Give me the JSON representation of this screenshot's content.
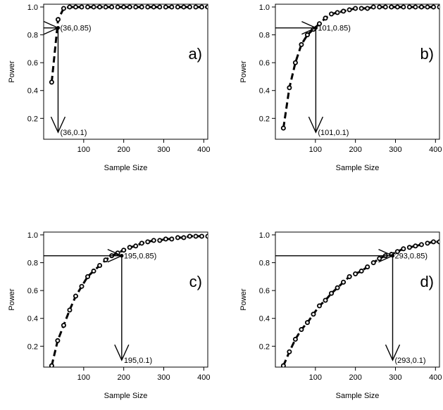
{
  "chart_data": [
    {
      "type": "scatter",
      "panel_label": "a)",
      "xlabel": "Sample Size",
      "ylabel": "Power",
      "xlim": [
        0,
        410
      ],
      "ylim": [
        0.05,
        1.02
      ],
      "xticks": [
        "100",
        "200",
        "300",
        "400"
      ],
      "yticks": [
        "0.2",
        "0.4",
        "0.6",
        "0.8",
        "1.0"
      ],
      "x": [
        20,
        36,
        50,
        65,
        80,
        95,
        110,
        125,
        140,
        155,
        170,
        185,
        200,
        215,
        230,
        245,
        260,
        275,
        290,
        305,
        320,
        335,
        350,
        365,
        380,
        395,
        410
      ],
      "y": [
        0.46,
        0.91,
        0.99,
        1.0,
        1.0,
        1.0,
        1.0,
        1.0,
        1.0,
        1.0,
        1.0,
        1.0,
        1.0,
        1.0,
        1.0,
        1.0,
        1.0,
        1.0,
        1.0,
        1.0,
        1.0,
        1.0,
        1.0,
        1.0,
        1.0,
        1.0,
        1.0
      ],
      "target": {
        "x": 36,
        "y": 0.85,
        "label": "(36,0.85)"
      },
      "drop": {
        "x": 36,
        "y": 0.1,
        "label": "(36,0.1)"
      }
    },
    {
      "type": "scatter",
      "panel_label": "b)",
      "xlabel": "Sample Size",
      "ylabel": "Power",
      "xlim": [
        0,
        410
      ],
      "ylim": [
        0.05,
        1.02
      ],
      "xticks": [
        "100",
        "200",
        "300",
        "400"
      ],
      "yticks": [
        "0.2",
        "0.4",
        "0.6",
        "0.8",
        "1.0"
      ],
      "x": [
        20,
        35,
        50,
        65,
        80,
        95,
        110,
        125,
        140,
        155,
        170,
        185,
        200,
        215,
        230,
        245,
        260,
        275,
        290,
        305,
        320,
        335,
        350,
        365,
        380,
        395,
        410
      ],
      "y": [
        0.13,
        0.42,
        0.6,
        0.73,
        0.8,
        0.84,
        0.88,
        0.92,
        0.95,
        0.96,
        0.97,
        0.98,
        0.99,
        0.99,
        0.99,
        1.0,
        1.0,
        1.0,
        1.0,
        1.0,
        1.0,
        1.0,
        1.0,
        1.0,
        1.0,
        1.0,
        1.0
      ],
      "target": {
        "x": 101,
        "y": 0.85,
        "label": "101,0.85)"
      },
      "drop": {
        "x": 101,
        "y": 0.1,
        "label": "(101,0.1)"
      }
    },
    {
      "type": "scatter",
      "panel_label": "c)",
      "xlabel": "Sample Size",
      "ylabel": "Power",
      "xlim": [
        0,
        410
      ],
      "ylim": [
        0.05,
        1.02
      ],
      "xticks": [
        "100",
        "200",
        "300",
        "400"
      ],
      "yticks": [
        "0.2",
        "0.4",
        "0.6",
        "0.8",
        "1.0"
      ],
      "x": [
        20,
        35,
        50,
        65,
        80,
        95,
        110,
        125,
        140,
        155,
        170,
        185,
        200,
        215,
        230,
        245,
        260,
        275,
        290,
        305,
        320,
        335,
        350,
        365,
        380,
        395,
        410
      ],
      "y": [
        0.06,
        0.24,
        0.35,
        0.46,
        0.56,
        0.63,
        0.7,
        0.74,
        0.78,
        0.82,
        0.85,
        0.87,
        0.89,
        0.91,
        0.92,
        0.94,
        0.95,
        0.96,
        0.96,
        0.97,
        0.97,
        0.98,
        0.98,
        0.99,
        0.99,
        0.99,
        0.99
      ],
      "target": {
        "x": 195,
        "y": 0.85,
        "label": "195,0.85)"
      },
      "drop": {
        "x": 195,
        "y": 0.1,
        "label": "195,0.1)"
      }
    },
    {
      "type": "scatter",
      "panel_label": "d)",
      "xlabel": "Sample Size",
      "ylabel": "Power",
      "xlim": [
        0,
        410
      ],
      "ylim": [
        0.05,
        1.02
      ],
      "xticks": [
        "100",
        "200",
        "300",
        "400"
      ],
      "yticks": [
        "0.2",
        "0.4",
        "0.6",
        "0.8",
        "1.0"
      ],
      "x": [
        20,
        35,
        50,
        65,
        80,
        95,
        110,
        125,
        140,
        155,
        170,
        185,
        200,
        215,
        230,
        245,
        260,
        275,
        290,
        305,
        320,
        335,
        350,
        365,
        380,
        395,
        410
      ],
      "y": [
        0.06,
        0.16,
        0.25,
        0.32,
        0.37,
        0.43,
        0.49,
        0.53,
        0.58,
        0.62,
        0.66,
        0.7,
        0.72,
        0.74,
        0.77,
        0.8,
        0.83,
        0.85,
        0.86,
        0.88,
        0.9,
        0.91,
        0.92,
        0.93,
        0.94,
        0.95,
        0.95
      ],
      "target": {
        "x": 293,
        "y": 0.85,
        "label": "293,0.85)"
      },
      "drop": {
        "x": 293,
        "y": 0.1,
        "label": "(293,0.1)"
      }
    }
  ]
}
